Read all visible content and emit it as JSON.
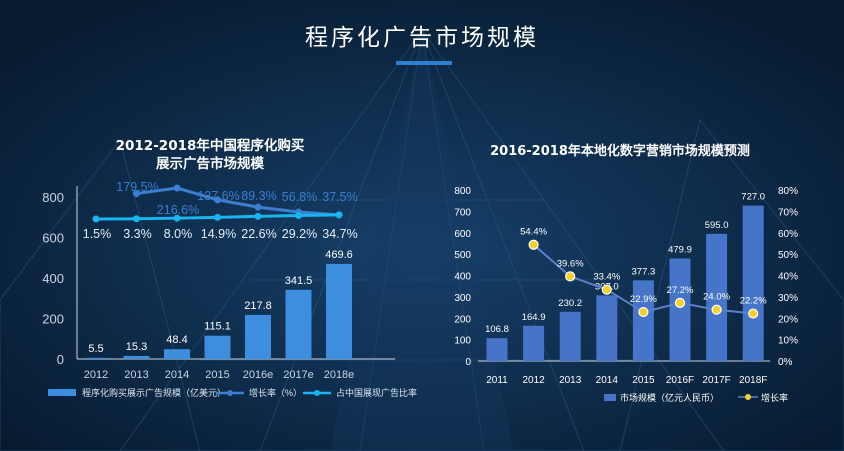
{
  "page": {
    "title": "程序化广告市场规模"
  },
  "colors": {
    "background": "#0b2540",
    "bar_left": "#3e8ee0",
    "growth_left": "#3a7fd1",
    "share_left": "#18b5f0",
    "bar_right": "#4674c9",
    "growth_right": "#5b7fc9",
    "marker_right": "#f3d02b"
  },
  "chart_data": [
    {
      "type": "bar",
      "title_line1": "2012-2018年中国程序化购买",
      "title_line2": "展示广告市场规模",
      "categories": [
        "2012",
        "2013",
        "2014",
        "2015",
        "2016e",
        "2017e",
        "2018e"
      ],
      "y_ticks": [
        "0",
        "200",
        "400",
        "600",
        "800"
      ],
      "ylim": [
        0,
        850
      ],
      "series": [
        {
          "name": "程序化购买展示广告规模（亿美元）",
          "kind": "bar",
          "values": [
            5.5,
            15.3,
            48.4,
            115.1,
            217.8,
            341.5,
            469.6
          ],
          "labels": [
            "5.5",
            "15.3",
            "48.4",
            "115.1",
            "217.8",
            "341.5",
            "469.6"
          ]
        },
        {
          "name": "增长率（%）",
          "kind": "line",
          "values": [
            null,
            179.5,
            216.6,
            137.6,
            89.3,
            56.8,
            37.5
          ],
          "labels": [
            "",
            "179.5%",
            "216.6%",
            "137.6%",
            "89.3%",
            "56.8%",
            "37.5%"
          ]
        },
        {
          "name": "占中国展现广告比率",
          "kind": "line",
          "values": [
            1.5,
            3.3,
            8.0,
            14.9,
            22.6,
            29.2,
            34.7
          ],
          "labels": [
            "1.5%",
            "3.3%",
            "8.0%",
            "14.9%",
            "22.6%",
            "29.2%",
            "34.7%"
          ]
        }
      ],
      "legend_position": "bottom"
    },
    {
      "type": "bar",
      "title": "2016-2018年本地化数字营销市场规模预测",
      "categories": [
        "2011",
        "2012",
        "2013",
        "2014",
        "2015",
        "2016F",
        "2017F",
        "2018F"
      ],
      "y_ticks": [
        "0",
        "100",
        "200",
        "300",
        "400",
        "500",
        "600",
        "700",
        "800"
      ],
      "y2_ticks": [
        "0%",
        "10%",
        "20%",
        "30%",
        "40%",
        "50%",
        "60%",
        "70%",
        "80%"
      ],
      "ylim": [
        0,
        800
      ],
      "y2lim": [
        0,
        80
      ],
      "series": [
        {
          "name": "市场规模（亿元人民币）",
          "kind": "bar",
          "values": [
            106.8,
            164.9,
            230.2,
            307.0,
            377.3,
            479.9,
            595.0,
            727.0
          ],
          "labels": [
            "106.8",
            "164.9",
            "230.2",
            "307.0",
            "377.3",
            "479.9",
            "595.0",
            "727.0"
          ]
        },
        {
          "name": "增长率",
          "kind": "line",
          "values": [
            null,
            54.4,
            39.6,
            33.4,
            22.9,
            27.2,
            24.0,
            22.2
          ],
          "labels": [
            "",
            "54.4%",
            "39.6%",
            "33.4%",
            "22.9%",
            "27.2%",
            "24.0%",
            "22.2%"
          ]
        }
      ],
      "legend_position": "bottom"
    }
  ]
}
